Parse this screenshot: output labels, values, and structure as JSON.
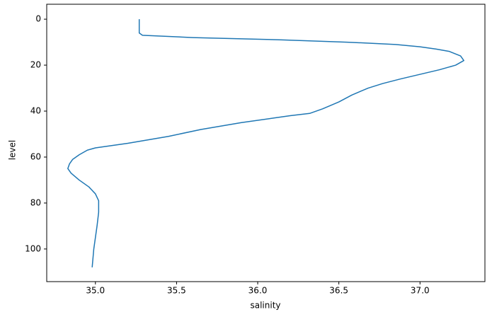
{
  "chart_data": {
    "type": "line",
    "x_label": "salinity",
    "y_label": "level",
    "series": [
      {
        "color": "#1f77b4",
        "x": [
          35.27,
          35.27,
          35.29,
          35.6,
          36.15,
          36.55,
          36.85,
          37.0,
          37.1,
          37.18,
          37.25,
          37.27,
          37.22,
          37.12,
          37.0,
          36.88,
          36.77,
          36.68,
          36.58,
          36.5,
          36.4,
          36.32,
          36.2,
          36.1,
          35.9,
          35.65,
          35.45,
          35.2,
          35.0,
          34.95,
          34.9,
          34.86,
          34.84,
          34.83,
          34.85,
          34.9,
          34.96,
          35.0,
          35.02,
          35.02,
          35.01,
          35.0,
          34.99,
          34.98
        ],
        "values": [
          0,
          6,
          7,
          8,
          9,
          10,
          11,
          12,
          13,
          14,
          16,
          18,
          20,
          22,
          24,
          26,
          28,
          30,
          33,
          36,
          39,
          41,
          42,
          43,
          45,
          48,
          51,
          54,
          56,
          57,
          59,
          61,
          63,
          65,
          67,
          70,
          73,
          76,
          79,
          84,
          90,
          95,
          100,
          108
        ]
      }
    ],
    "xlim": [
      34.7,
      37.4
    ],
    "xticks": [
      {
        "value": 35,
        "label": "35.0"
      },
      35.5,
      {
        "value": 36,
        "label": "36.0"
      },
      36.5,
      {
        "value": 37,
        "label": "37.0"
      }
    ],
    "ylim": [
      114.2,
      -6.5
    ],
    "yticks": [
      0,
      20,
      40,
      60,
      80,
      100
    ]
  }
}
